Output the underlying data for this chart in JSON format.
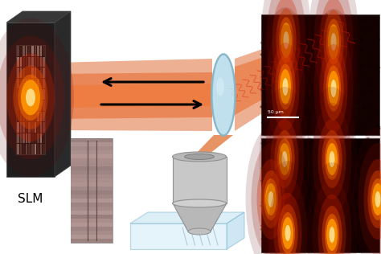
{
  "bg_color": "#ffffff",
  "slm_label": "SLM",
  "scale_bar_label": "50 μm",
  "beam_orange_outer": "#e05818",
  "beam_orange_inner": "#f07838",
  "panel_bg_top": "#100000",
  "panel_bg_bot": "#0a0000"
}
